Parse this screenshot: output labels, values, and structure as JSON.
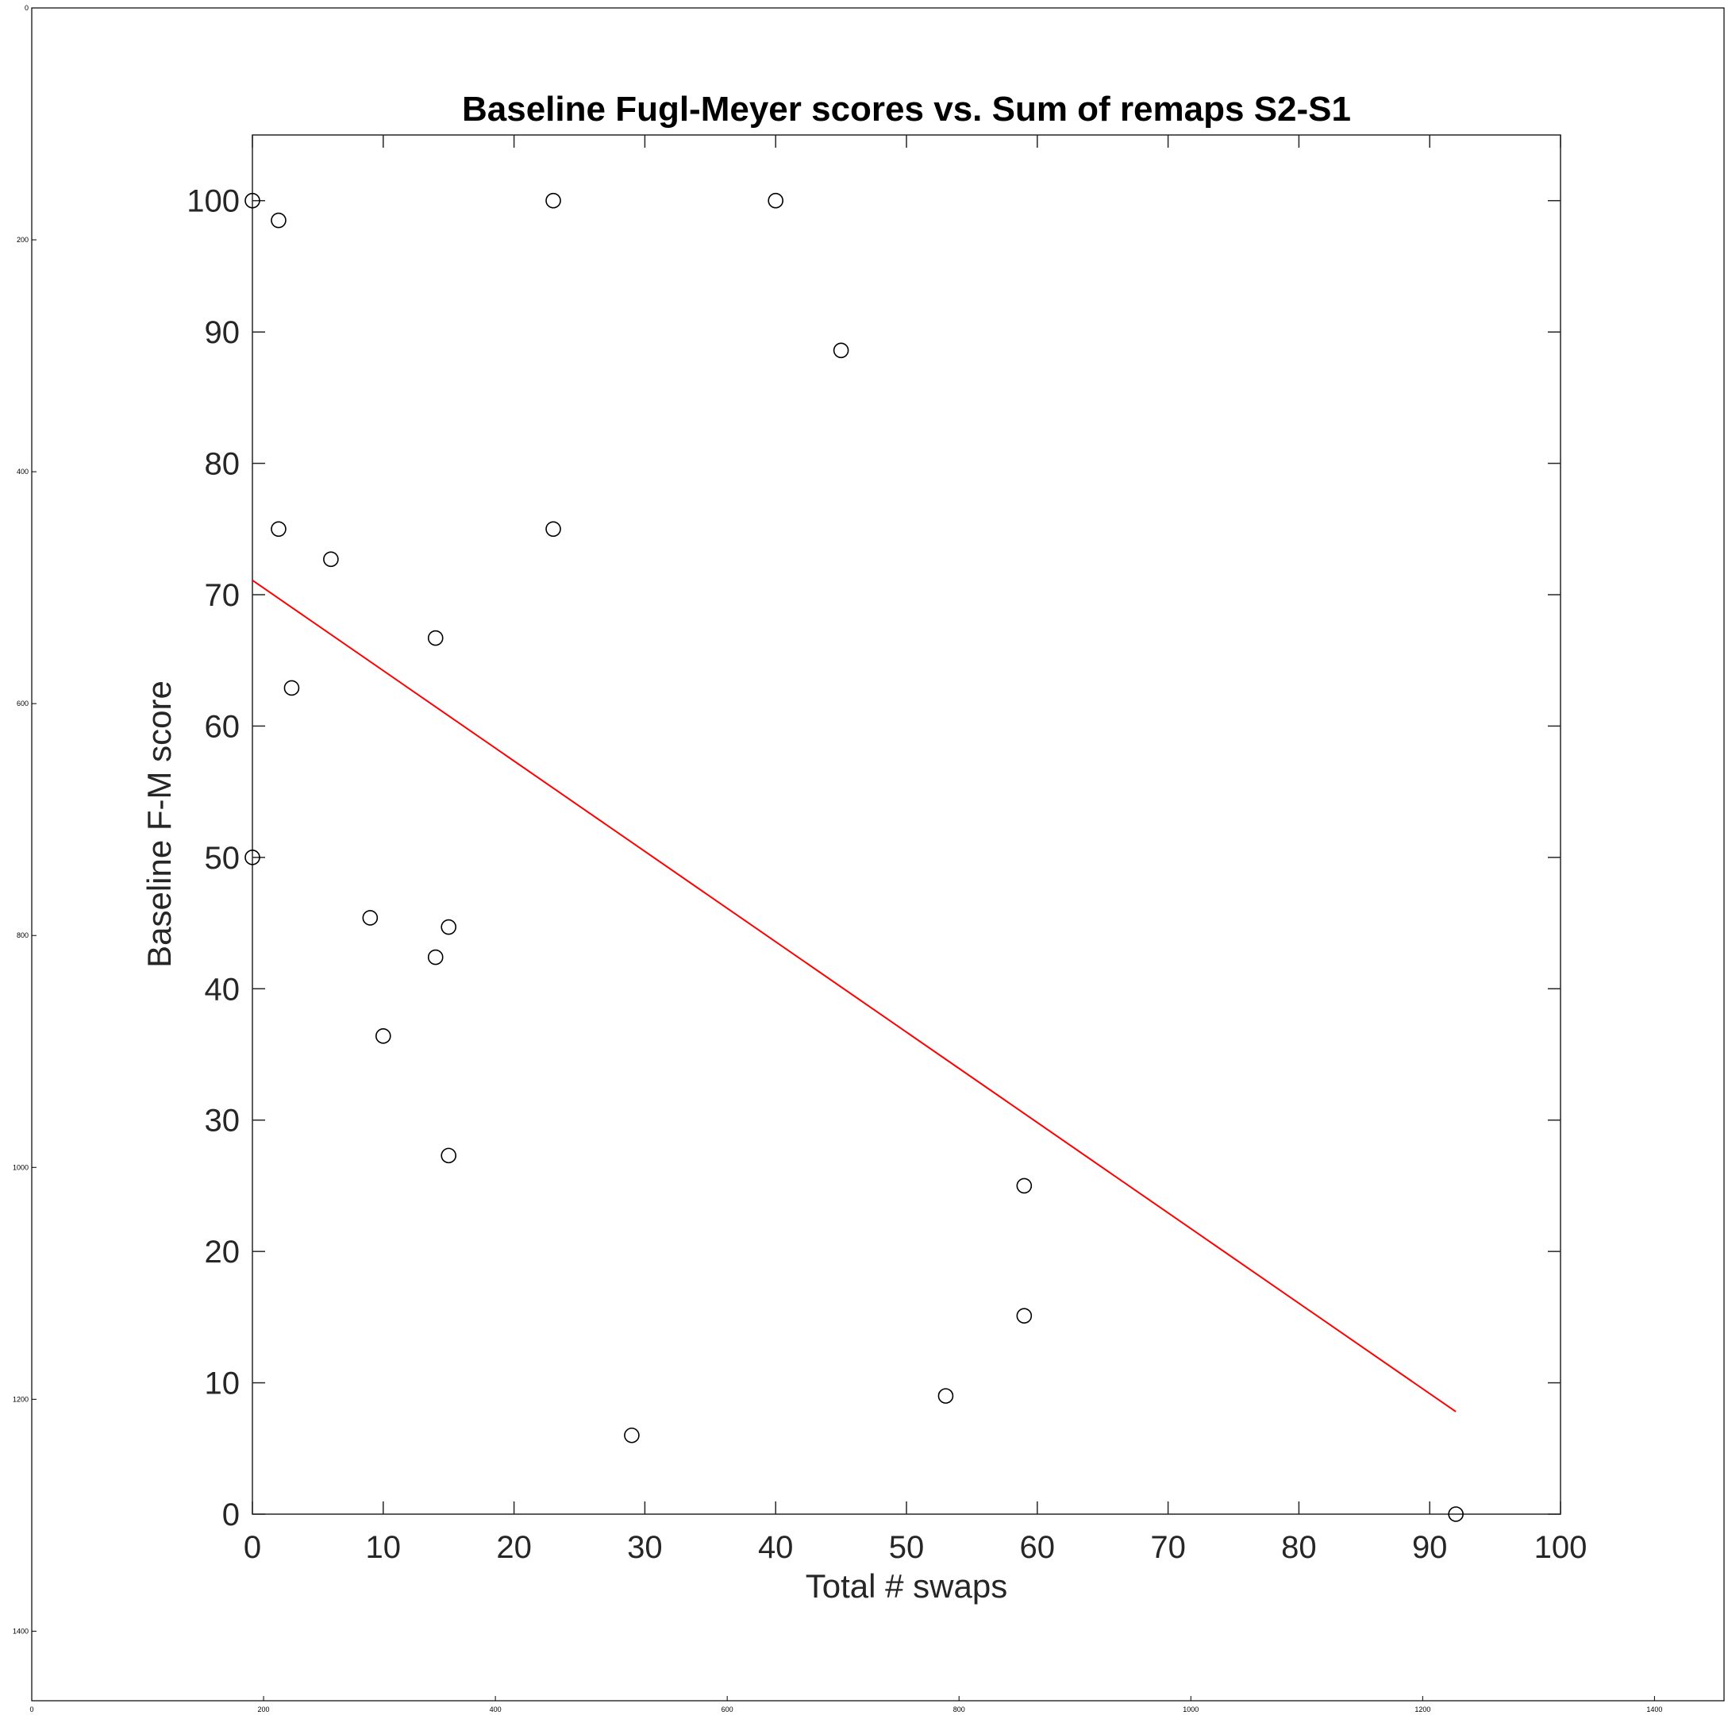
{
  "chart_data": {
    "type": "scatter",
    "title": "Baseline Fugl-Meyer scores vs. Sum of remaps S2-S1",
    "xlabel": "Total # swaps",
    "ylabel": "Baseline F-M score",
    "xlim": [
      0,
      100
    ],
    "ylim": [
      0,
      105
    ],
    "xticks": [
      "0",
      "10",
      "20",
      "30",
      "40",
      "50",
      "60",
      "70",
      "80",
      "90",
      "100"
    ],
    "yticks": [
      "0",
      "10",
      "20",
      "30",
      "40",
      "50",
      "60",
      "70",
      "80",
      "90",
      "100"
    ],
    "grid": false,
    "legend": null,
    "marker": "open-circle",
    "marker_color": "#000000",
    "series": [
      {
        "points": [
          {
            "x": 0,
            "y": 100
          },
          {
            "x": 2,
            "y": 98.5
          },
          {
            "x": 23,
            "y": 100
          },
          {
            "x": 40,
            "y": 100
          },
          {
            "x": 45,
            "y": 88.6
          },
          {
            "x": 2,
            "y": 75
          },
          {
            "x": 23,
            "y": 75
          },
          {
            "x": 6,
            "y": 72.7
          },
          {
            "x": 14,
            "y": 66.7
          },
          {
            "x": 3,
            "y": 62.9
          },
          {
            "x": 0,
            "y": 50
          },
          {
            "x": 9,
            "y": 45.4
          },
          {
            "x": 15,
            "y": 44.7
          },
          {
            "x": 14,
            "y": 42.4
          },
          {
            "x": 10,
            "y": 36.4
          },
          {
            "x": 15,
            "y": 27.3
          },
          {
            "x": 59,
            "y": 25
          },
          {
            "x": 59,
            "y": 15.1
          },
          {
            "x": 53,
            "y": 9
          },
          {
            "x": 29,
            "y": 6
          },
          {
            "x": 92,
            "y": 0
          }
        ]
      }
    ],
    "fit_line": {
      "color": "#ff0000",
      "x": [
        0,
        92
      ],
      "y": [
        71.1,
        7.8
      ]
    }
  },
  "outer_axes": {
    "xticks": [
      "0",
      "200",
      "400",
      "600",
      "800",
      "1000",
      "1200",
      "1400"
    ],
    "yticks": [
      "0",
      "200",
      "400",
      "600",
      "800",
      "1000",
      "1200",
      "1400"
    ]
  }
}
